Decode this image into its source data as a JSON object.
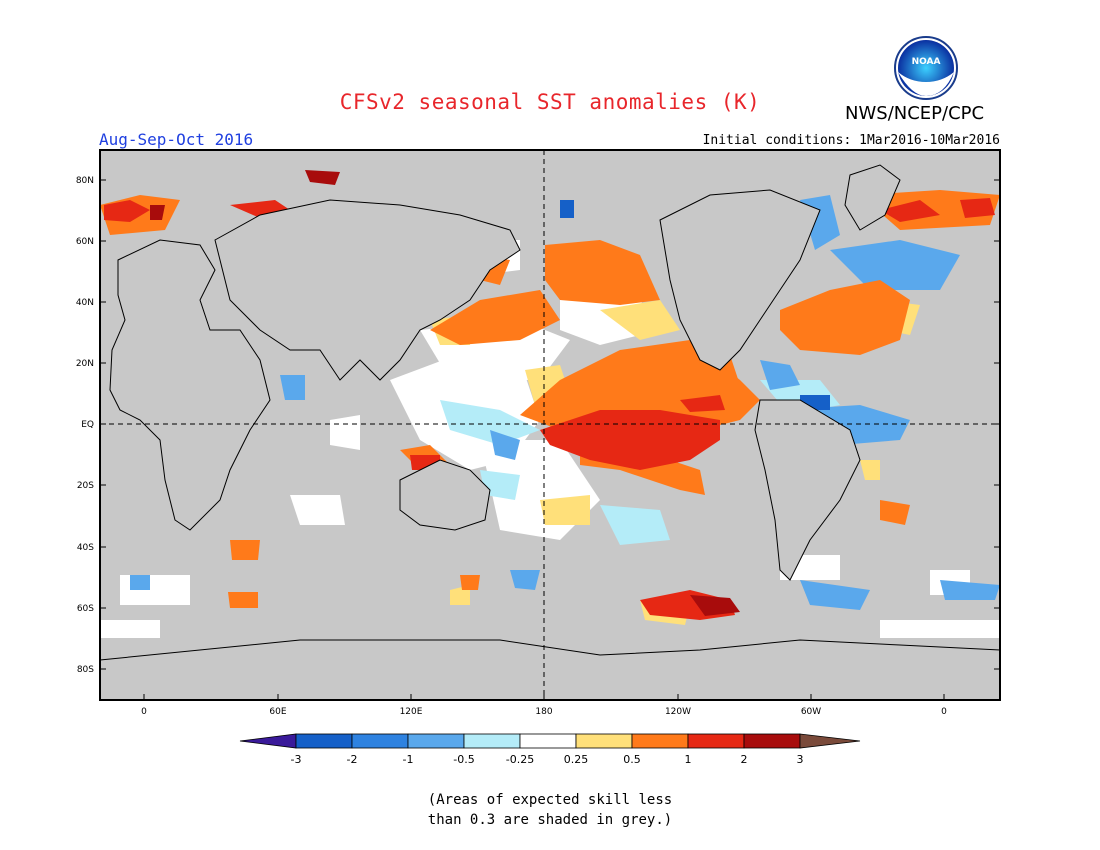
{
  "title": "CFSv2 seasonal SST anomalies (K)",
  "organization": "NWS/NCEP/CPC",
  "logo_text": "NOAA",
  "period": "Aug-Sep-Oct 2016",
  "initial_conditions": "Initial conditions: 1Mar2016-10Mar2016",
  "note_line1": "(Areas of expected skill less",
  "note_line2": "than 0.3 are shaded in grey.)",
  "colors": {
    "skill_grey": "#c8c8c8",
    "land": "#ffffff",
    "coast": "#000000",
    "title_red": "#e8262b",
    "period_blue": "#2040e0"
  },
  "map": {
    "lat_labels": [
      "80N",
      "60N",
      "40N",
      "20N",
      "EQ",
      "20S",
      "40S",
      "60S",
      "80S"
    ],
    "lon_labels": [
      "0",
      "60E",
      "120E",
      "180",
      "120W",
      "60W",
      "0"
    ],
    "reference_lines": [
      "Equator (dashed)",
      "Date line 180 (dashed)"
    ]
  },
  "colorbar": {
    "labels": [
      "-3",
      "-2",
      "-1",
      "-0.5",
      "-0.25",
      "0.25",
      "0.5",
      "1",
      "2",
      "3"
    ],
    "bins": [
      {
        "range": "below -3",
        "color": "#3a1a9a"
      },
      {
        "range": "-3 to -2",
        "color": "#1560c8"
      },
      {
        "range": "-2 to -1",
        "color": "#2e82e0"
      },
      {
        "range": "-1 to -0.5",
        "color": "#5aa8ec"
      },
      {
        "range": "-0.5 to -0.25",
        "color": "#b4ecf8"
      },
      {
        "range": "-0.25 to 0.25",
        "color": "#ffffff"
      },
      {
        "range": "0.25 to 0.5",
        "color": "#ffe07a"
      },
      {
        "range": "0.5 to 1",
        "color": "#ff7a1a"
      },
      {
        "range": "1 to 2",
        "color": "#e62814"
      },
      {
        "range": "2 to 3",
        "color": "#a80c0c"
      },
      {
        "range": "above 3",
        "color": "#7a4a3a"
      }
    ]
  },
  "anomaly_regions": [
    {
      "name": "Central-eastern equatorial Pacific",
      "category": "1 to 2",
      "color": "#e62814"
    },
    {
      "name": "Northeast Pacific",
      "category": "0.5 to 1",
      "color": "#ff7a1a"
    },
    {
      "name": "North Atlantic subtropics",
      "category": "0.5 to 1",
      "color": "#ff7a1a"
    },
    {
      "name": "Southeast Pacific (near 60S)",
      "category": "2 to 3",
      "color": "#a80c0c"
    },
    {
      "name": "Arctic / Barents margins",
      "category": "1 to 2",
      "color": "#e62814"
    },
    {
      "name": "Tropical Atlantic",
      "category": "-1 to -0.5",
      "color": "#5aa8ec"
    },
    {
      "name": "Labrador Sea",
      "category": "-1 to -0.5",
      "color": "#5aa8ec"
    },
    {
      "name": "Indian Ocean",
      "category": "-0.25 to 0.25",
      "color": "#ffffff"
    }
  ]
}
